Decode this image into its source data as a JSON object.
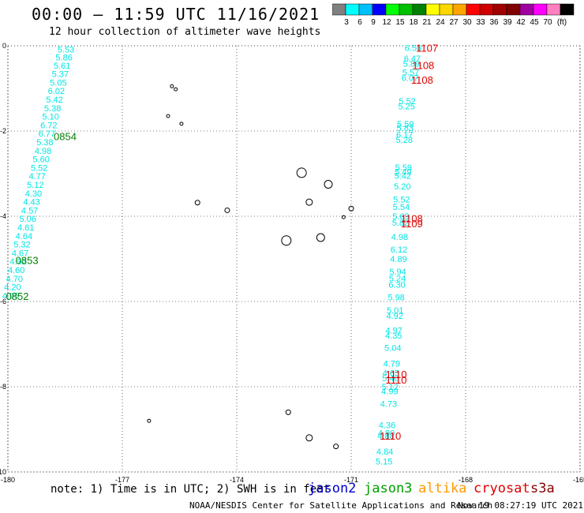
{
  "title": "00:00 – 11:59 UTC 11/16/2021",
  "subtitle": "12 hour collection of altimeter wave heights",
  "colorbar": {
    "labels": [
      "3",
      "6",
      "9",
      "12",
      "15",
      "18",
      "21",
      "24",
      "27",
      "30",
      "33",
      "36",
      "39",
      "42",
      "45",
      "70"
    ],
    "unit": "(ft)",
    "colors": [
      "#808080",
      "#00ffff",
      "#00bfff",
      "#0000ff",
      "#00ff00",
      "#00c000",
      "#008000",
      "#ffff00",
      "#ffd700",
      "#ffa500",
      "#ff0000",
      "#d00000",
      "#a00000",
      "#800000",
      "#a000a0",
      "#ff00ff",
      "#ff80c0",
      "#000000"
    ]
  },
  "axes": {
    "x_ticks": [
      "-180",
      "-177",
      "-174",
      "-171",
      "-168",
      "-165"
    ],
    "y_ticks": [
      "0",
      "-2",
      "-4",
      "-6",
      "-8",
      "-10"
    ],
    "x_range": [
      -180,
      -165
    ],
    "y_range": [
      -10,
      0
    ]
  },
  "tracks": [
    {
      "name": "western-track",
      "color": "#00e5e5",
      "points": [
        {
          "lon": -178.7,
          "lat": -0.08,
          "swh": "5.53"
        },
        {
          "lon": -178.75,
          "lat": -0.27,
          "swh": "5.86"
        },
        {
          "lon": -178.8,
          "lat": -0.46,
          "swh": "5.61"
        },
        {
          "lon": -178.85,
          "lat": -0.66,
          "swh": "5.37"
        },
        {
          "lon": -178.9,
          "lat": -0.86,
          "swh": "5.05"
        },
        {
          "lon": -178.95,
          "lat": -1.06,
          "swh": "6.02"
        },
        {
          "lon": -179.0,
          "lat": -1.26,
          "swh": "5.42"
        },
        {
          "lon": -179.05,
          "lat": -1.46,
          "swh": "5.38"
        },
        {
          "lon": -179.1,
          "lat": -1.66,
          "swh": "5.10"
        },
        {
          "lon": -179.15,
          "lat": -1.86,
          "swh": "6.72"
        },
        {
          "lon": -179.2,
          "lat": -2.06,
          "swh": "6.77"
        },
        {
          "lon": -179.25,
          "lat": -2.26,
          "swh": "5.38"
        },
        {
          "lon": -179.3,
          "lat": -2.46,
          "swh": "4.98"
        },
        {
          "lon": -179.35,
          "lat": -2.66,
          "swh": "5.60"
        },
        {
          "lon": -179.4,
          "lat": -2.86,
          "swh": "5.52"
        },
        {
          "lon": -179.45,
          "lat": -3.06,
          "swh": "4.77"
        },
        {
          "lon": -179.5,
          "lat": -3.26,
          "swh": "5.12"
        },
        {
          "lon": -179.55,
          "lat": -3.46,
          "swh": "4.30"
        },
        {
          "lon": -179.6,
          "lat": -3.66,
          "swh": "4.43"
        },
        {
          "lon": -179.65,
          "lat": -3.86,
          "swh": "4.57"
        },
        {
          "lon": -179.7,
          "lat": -4.06,
          "swh": "5.06"
        },
        {
          "lon": -179.75,
          "lat": -4.26,
          "swh": "4.61"
        },
        {
          "lon": -179.8,
          "lat": -4.46,
          "swh": "4.64"
        },
        {
          "lon": -179.85,
          "lat": -4.66,
          "swh": "5.32"
        },
        {
          "lon": -179.9,
          "lat": -4.86,
          "swh": "4.67"
        },
        {
          "lon": -179.95,
          "lat": -5.06,
          "swh": "4.92"
        },
        {
          "lon": -180.0,
          "lat": -5.26,
          "swh": "4.60"
        },
        {
          "lon": -180.05,
          "lat": -5.46,
          "swh": "4.70"
        },
        {
          "lon": -180.1,
          "lat": -5.66,
          "swh": "4.20"
        },
        {
          "lon": -180.15,
          "lat": -5.86,
          "swh": "4.95"
        }
      ]
    },
    {
      "name": "eastern-track",
      "color": "#00e5e5",
      "points": [
        {
          "lon": -169.6,
          "lat": -0.05,
          "swh": "6.56"
        },
        {
          "lon": -169.62,
          "lat": -0.3,
          "swh": "6.47"
        },
        {
          "lon": -169.64,
          "lat": -0.42,
          "swh": "5.89"
        },
        {
          "lon": -169.66,
          "lat": -0.62,
          "swh": "5.57"
        },
        {
          "lon": -169.68,
          "lat": -0.75,
          "swh": "6.07"
        },
        {
          "lon": -169.75,
          "lat": -1.3,
          "swh": "5.52"
        },
        {
          "lon": -169.77,
          "lat": -1.42,
          "swh": "5.25"
        },
        {
          "lon": -169.8,
          "lat": -1.83,
          "swh": "5.59"
        },
        {
          "lon": -169.81,
          "lat": -1.93,
          "swh": "5.83"
        },
        {
          "lon": -169.82,
          "lat": -2.08,
          "swh": "6.17"
        },
        {
          "lon": -169.83,
          "lat": -2.2,
          "swh": "5.28"
        },
        {
          "lon": -169.85,
          "lat": -2.85,
          "swh": "5.59"
        },
        {
          "lon": -169.86,
          "lat": -2.95,
          "swh": "5.49"
        },
        {
          "lon": -169.87,
          "lat": -3.05,
          "swh": "5.42"
        },
        {
          "lon": -169.88,
          "lat": -3.3,
          "swh": "5.20"
        },
        {
          "lon": -169.9,
          "lat": -3.6,
          "swh": "5.52"
        },
        {
          "lon": -169.91,
          "lat": -3.78,
          "swh": "5.54"
        },
        {
          "lon": -169.92,
          "lat": -4.0,
          "swh": "5.69"
        },
        {
          "lon": -169.93,
          "lat": -4.15,
          "swh": "5.82"
        },
        {
          "lon": -169.95,
          "lat": -4.48,
          "swh": "4.98"
        },
        {
          "lon": -169.97,
          "lat": -4.78,
          "swh": "6.12"
        },
        {
          "lon": -169.98,
          "lat": -5.0,
          "swh": "4.89"
        },
        {
          "lon": -170.0,
          "lat": -5.3,
          "swh": "5.94"
        },
        {
          "lon": -170.01,
          "lat": -5.45,
          "swh": "5.24"
        },
        {
          "lon": -170.02,
          "lat": -5.6,
          "swh": "6.30"
        },
        {
          "lon": -170.04,
          "lat": -5.9,
          "swh": "5.98"
        },
        {
          "lon": -170.07,
          "lat": -6.2,
          "swh": "5.01"
        },
        {
          "lon": -170.08,
          "lat": -6.33,
          "swh": "4.92"
        },
        {
          "lon": -170.1,
          "lat": -6.68,
          "swh": "4.97"
        },
        {
          "lon": -170.11,
          "lat": -6.8,
          "swh": "4.35"
        },
        {
          "lon": -170.13,
          "lat": -7.08,
          "swh": "5.04"
        },
        {
          "lon": -170.16,
          "lat": -7.45,
          "swh": "4.79"
        },
        {
          "lon": -170.18,
          "lat": -7.68,
          "swh": "4.65"
        },
        {
          "lon": -170.19,
          "lat": -7.8,
          "swh": "5.46"
        },
        {
          "lon": -170.2,
          "lat": -8.0,
          "swh": "5.12"
        },
        {
          "lon": -170.21,
          "lat": -8.1,
          "swh": "4.99"
        },
        {
          "lon": -170.24,
          "lat": -8.4,
          "swh": "4.73"
        },
        {
          "lon": -170.28,
          "lat": -8.9,
          "swh": "4.36"
        },
        {
          "lon": -170.3,
          "lat": -9.08,
          "swh": "4.90"
        },
        {
          "lon": -170.31,
          "lat": -9.15,
          "swh": "4.88"
        },
        {
          "lon": -170.34,
          "lat": -9.52,
          "swh": "4.84"
        },
        {
          "lon": -170.36,
          "lat": -9.75,
          "swh": "5.15"
        }
      ]
    }
  ],
  "time_labels": [
    {
      "text": "0854",
      "lon": -178.8,
      "lat": -2.12,
      "color": "#008000"
    },
    {
      "text": "0853",
      "lon": -179.8,
      "lat": -5.03,
      "color": "#008000"
    },
    {
      "text": "0852",
      "lon": -180.05,
      "lat": -5.87,
      "color": "#008000"
    },
    {
      "text": "1107",
      "lon": -169.3,
      "lat": -0.05,
      "color": "#e00000"
    },
    {
      "text": "1108",
      "lon": -169.4,
      "lat": -0.45,
      "color": "#e00000"
    },
    {
      "text": "1108",
      "lon": -169.43,
      "lat": -0.8,
      "color": "#e00000"
    },
    {
      "text": "1108",
      "lon": -169.7,
      "lat": -4.05,
      "color": "#e00000"
    },
    {
      "text": "1109",
      "lon": -169.7,
      "lat": -4.17,
      "color": "#e00000"
    },
    {
      "text": "1110",
      "lon": -170.1,
      "lat": -7.7,
      "color": "#e00000"
    },
    {
      "text": "1110",
      "lon": -170.1,
      "lat": -7.83,
      "color": "#e00000"
    },
    {
      "text": "1110",
      "lon": -170.25,
      "lat": -9.15,
      "color": "#e00000"
    }
  ],
  "islands": [
    {
      "lon": -175.7,
      "lat": -0.95,
      "size": 2
    },
    {
      "lon": -175.6,
      "lat": -1.02,
      "size": 2
    },
    {
      "lon": -175.8,
      "lat": -1.65,
      "size": 2
    },
    {
      "lon": -175.45,
      "lat": -1.83,
      "size": 2
    },
    {
      "lon": -175.03,
      "lat": -3.68,
      "size": 3
    },
    {
      "lon": -174.25,
      "lat": -3.86,
      "size": 3
    },
    {
      "lon": -172.3,
      "lat": -2.98,
      "size": 6
    },
    {
      "lon": -171.6,
      "lat": -3.25,
      "size": 5
    },
    {
      "lon": -172.1,
      "lat": -3.67,
      "size": 4
    },
    {
      "lon": -171.0,
      "lat": -3.82,
      "size": 3
    },
    {
      "lon": -171.2,
      "lat": -4.02,
      "size": 2
    },
    {
      "lon": -172.7,
      "lat": -4.57,
      "size": 6
    },
    {
      "lon": -171.8,
      "lat": -4.5,
      "size": 5
    },
    {
      "lon": -172.65,
      "lat": -8.6,
      "size": 3
    },
    {
      "lon": -172.1,
      "lat": -9.2,
      "size": 4
    },
    {
      "lon": -171.4,
      "lat": -9.4,
      "size": 3
    },
    {
      "lon": -176.3,
      "lat": -8.8,
      "size": 2
    }
  ],
  "note": "note: 1) Time is in UTC; 2) SWH is in feet",
  "satellites": [
    {
      "name": "jason2",
      "color": "#0000cc"
    },
    {
      "name": "jason3",
      "color": "#00a000"
    },
    {
      "name": "altika",
      "color": "#ff9900"
    },
    {
      "name": "cryosat",
      "color": "#dd0000"
    },
    {
      "name": "s3a",
      "color": "#880000"
    }
  ],
  "footer_left": "NOAA/NESDIS Center for Satellite Applications and Research",
  "footer_right": "Nov 19 08:27:19 UTC 2021"
}
